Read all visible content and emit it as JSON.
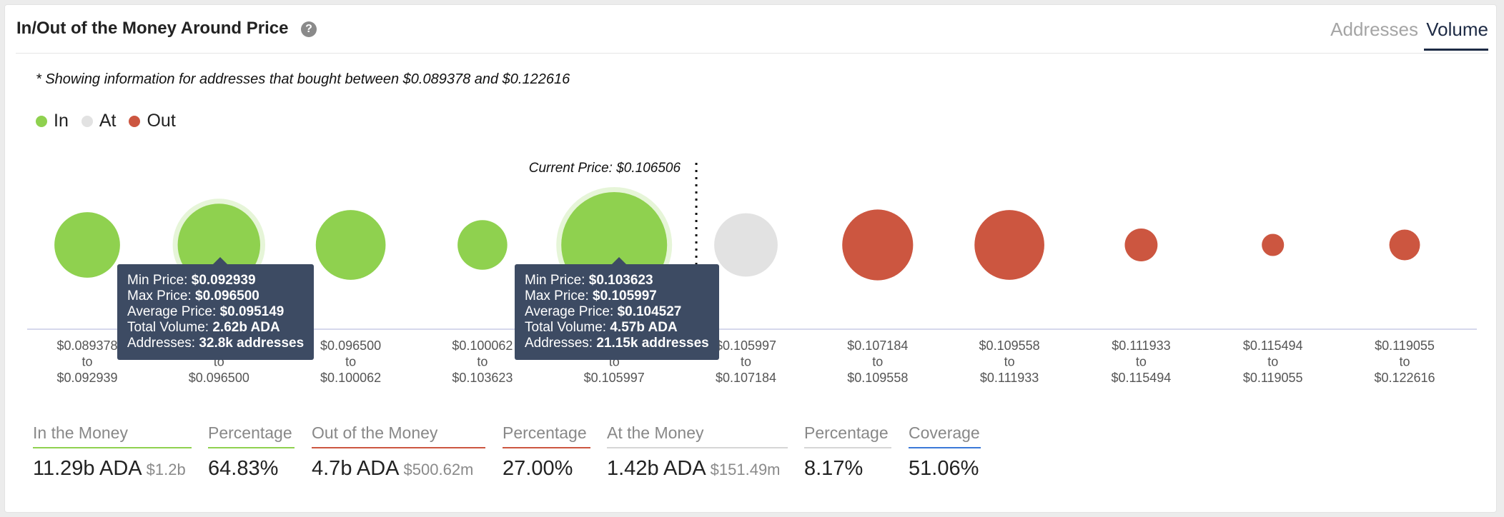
{
  "header": {
    "title": "In/Out of the Money Around Price",
    "help_icon": "?",
    "tabs": [
      {
        "label": "Addresses",
        "active": false
      },
      {
        "label": "Volume",
        "active": true
      }
    ]
  },
  "note": "* Showing information for addresses that bought between $0.089378 and $0.122616",
  "legend": [
    {
      "label": "In",
      "color": "#8fd14f"
    },
    {
      "label": "At",
      "color": "#e2e2e2"
    },
    {
      "label": "Out",
      "color": "#cc5640"
    }
  ],
  "chart_data": {
    "type": "scatter",
    "current_price_label": "Current Price: $0.106506",
    "current_price": 0.106506,
    "bubbles": [
      {
        "range": [
          "$0.089378",
          "to",
          "$0.092939"
        ],
        "status": "in",
        "size": 0.62
      },
      {
        "range": [
          "$0.092939",
          "to",
          "$0.096500"
        ],
        "status": "in",
        "size": 0.78,
        "highlighted": true
      },
      {
        "range": [
          "$0.096500",
          "to",
          "$0.100062"
        ],
        "status": "in",
        "size": 0.66
      },
      {
        "range": [
          "$0.100062",
          "to",
          "$0.103623"
        ],
        "status": "in",
        "size": 0.47
      },
      {
        "range": [
          "$0.103623",
          "to",
          "$0.105997"
        ],
        "status": "in",
        "size": 1.0,
        "highlighted": true
      },
      {
        "range": [
          "$0.105997",
          "to",
          "$0.107184"
        ],
        "status": "at",
        "size": 0.6
      },
      {
        "range": [
          "$0.107184",
          "to",
          "$0.109558"
        ],
        "status": "out",
        "size": 0.67
      },
      {
        "range": [
          "$0.109558",
          "to",
          "$0.111933"
        ],
        "status": "out",
        "size": 0.66
      },
      {
        "range": [
          "$0.111933",
          "to",
          "$0.115494"
        ],
        "status": "out",
        "size": 0.31
      },
      {
        "range": [
          "$0.115494",
          "to",
          "$0.119055"
        ],
        "status": "out",
        "size": 0.21
      },
      {
        "range": [
          "$0.119055",
          "to",
          "$0.122616"
        ],
        "status": "out",
        "size": 0.29
      }
    ],
    "colors": {
      "in": "#8fd14f",
      "at": "#e2e2e2",
      "out": "#cc5640"
    }
  },
  "tooltips": [
    {
      "rows": [
        {
          "label": "Min Price: ",
          "value": "$0.092939"
        },
        {
          "label": "Max Price: ",
          "value": "$0.096500"
        },
        {
          "label": "Average Price: ",
          "value": "$0.095149"
        },
        {
          "label": "Total Volume: ",
          "value": "2.62b ADA"
        },
        {
          "label": "Addresses: ",
          "value": "32.8k addresses"
        }
      ]
    },
    {
      "rows": [
        {
          "label": "Min Price: ",
          "value": "$0.103623"
        },
        {
          "label": "Max Price: ",
          "value": "$0.105997"
        },
        {
          "label": "Average Price: ",
          "value": "$0.104527"
        },
        {
          "label": "Total Volume: ",
          "value": "4.57b ADA"
        },
        {
          "label": "Addresses: ",
          "value": "21.15k addresses"
        }
      ]
    }
  ],
  "stats": [
    {
      "label": "In the Money",
      "value": "11.29b ADA",
      "sub": "$1.2b",
      "color": "#8fd14f"
    },
    {
      "label": "Percentage",
      "value": "64.83%",
      "sub": "",
      "color": "#8fd14f"
    },
    {
      "label": "Out of the Money",
      "value": "4.7b ADA",
      "sub": "$500.62m",
      "color": "#cc5640"
    },
    {
      "label": "Percentage",
      "value": "27.00%",
      "sub": "",
      "color": "#cc5640"
    },
    {
      "label": "At the Money",
      "value": "1.42b ADA",
      "sub": "$151.49m",
      "color": "#d6d6d6"
    },
    {
      "label": "Percentage",
      "value": "8.17%",
      "sub": "",
      "color": "#d6d6d6"
    },
    {
      "label": "Coverage",
      "value": "51.06%",
      "sub": "",
      "color": "#3a79d8"
    }
  ]
}
